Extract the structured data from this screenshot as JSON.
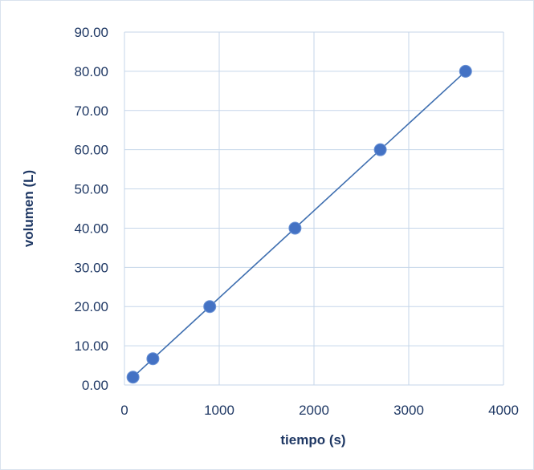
{
  "chart_data": {
    "type": "scatter",
    "title": "",
    "xlabel": "tiempo (s)",
    "ylabel": "volumen (L)",
    "xlim": [
      0,
      4000
    ],
    "ylim": [
      0,
      90
    ],
    "x_ticks": [
      "0",
      "1000",
      "2000",
      "3000",
      "4000"
    ],
    "y_ticks": [
      "0.00",
      "10.00",
      "20.00",
      "30.00",
      "40.00",
      "50.00",
      "60.00",
      "70.00",
      "80.00",
      "90.00"
    ],
    "grid": true,
    "trendline": "linear",
    "series": [
      {
        "x": [
          90,
          300,
          900,
          1800,
          2700,
          3600
        ],
        "y": [
          2.0,
          6.7,
          20.0,
          40.0,
          60.0,
          80.0
        ]
      }
    ],
    "colors": {
      "marker": "#4472c4",
      "line": "#3f6fb0",
      "grid": "#c5d6ea",
      "text": "#1f3864"
    }
  }
}
